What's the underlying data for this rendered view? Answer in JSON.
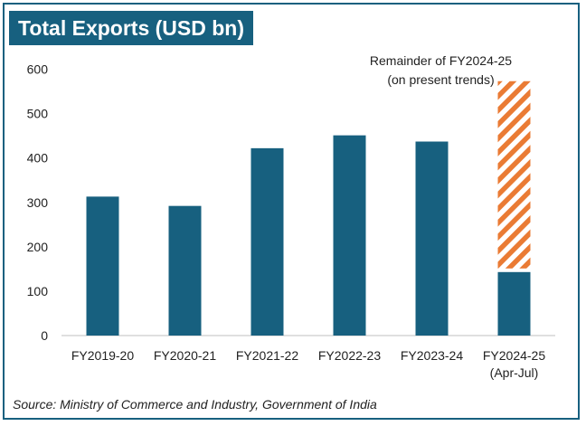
{
  "chart_data": {
    "type": "bar",
    "title": "Total Exports (USD bn)",
    "categories": [
      "FY2019-20",
      "FY2020-21",
      "FY2021-22",
      "FY2022-23",
      "FY2023-24",
      "FY2024-25"
    ],
    "category_sublabels": [
      "",
      "",
      "",
      "",
      "",
      "(Apr-Jul)"
    ],
    "series": [
      {
        "values": [
          313,
          292,
          422,
          451,
          437,
          143
        ],
        "color": "#17607f"
      },
      {
        "name": "Remainder of FY2024-25 (on present trends)",
        "values": [
          null,
          null,
          null,
          null,
          null,
          430
        ],
        "color": "#ea7b34",
        "pattern": "diagonal-hatch",
        "stacked": true
      }
    ],
    "annotation": {
      "line1": "Remainder of FY2024-25",
      "line2": "(on present trends)",
      "target": "FY2024-25"
    },
    "yticks": [
      0,
      100,
      200,
      300,
      400,
      500,
      600
    ],
    "ylim": [
      0,
      600
    ],
    "xlabel": "",
    "ylabel": "",
    "grid": false,
    "legend": "none",
    "source": "Source: Ministry of Commerce and Industry, Government of India"
  }
}
